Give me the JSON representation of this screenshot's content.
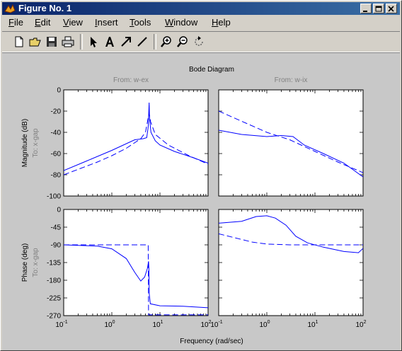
{
  "window": {
    "title": "Figure No. 1"
  },
  "menu": [
    {
      "label": "File",
      "underline": "F"
    },
    {
      "label": "Edit",
      "underline": "E"
    },
    {
      "label": "View",
      "underline": "V"
    },
    {
      "label": "Insert",
      "underline": "I"
    },
    {
      "label": "Tools",
      "underline": "T"
    },
    {
      "label": "Window",
      "underline": "W"
    },
    {
      "label": "Help",
      "underline": "H"
    }
  ],
  "toolbar": {
    "icons": [
      "new-figure-icon",
      "open-file-icon",
      "save-icon",
      "print-icon",
      "select-arrow-icon",
      "insert-text-icon",
      "insert-arrow-icon",
      "insert-line-icon",
      "zoom-in-icon",
      "zoom-out-icon",
      "rotate-3d-icon"
    ]
  },
  "chart_data": {
    "type": "line",
    "title": "Bode Diagram",
    "xlabel": "Frequency (rad/sec)",
    "xscale": "log",
    "xlim": [
      0.1,
      100
    ],
    "xticks": [
      "10^-1",
      "10^0",
      "10^1",
      "10^2"
    ],
    "columns": [
      "From: w-ex",
      "From: w-ix"
    ],
    "row_label": "To: x-gap",
    "magnitude": {
      "ylabel": "Magnitude (dB)",
      "ylim": [
        -100,
        0
      ],
      "yticks": [
        "0",
        "-20",
        "-40",
        "-60",
        "-80",
        "-100"
      ]
    },
    "phase": {
      "ylabel": "Phase (deg)",
      "ylim": [
        -270,
        0
      ],
      "yticks": [
        "0",
        "-45",
        "-90",
        "-135",
        "-180",
        "-225",
        "-270"
      ]
    },
    "panels": {
      "mag_wex": {
        "solid": [
          [
            0.1,
            -76
          ],
          [
            0.3,
            -67
          ],
          [
            1,
            -57
          ],
          [
            3,
            -47
          ],
          [
            4.5,
            -46
          ],
          [
            5.3,
            -45
          ],
          [
            5.7,
            -35
          ],
          [
            5.95,
            -12
          ],
          [
            6.1,
            -28
          ],
          [
            6.5,
            -40
          ],
          [
            8,
            -48
          ],
          [
            10,
            -52
          ],
          [
            20,
            -58
          ],
          [
            50,
            -64
          ],
          [
            100,
            -69
          ]
        ],
        "dashed": [
          [
            0.1,
            -80
          ],
          [
            0.5,
            -68
          ],
          [
            1,
            -62
          ],
          [
            2,
            -55
          ],
          [
            4,
            -46
          ],
          [
            5,
            -40
          ],
          [
            5.6,
            -28
          ],
          [
            5.95,
            -22
          ],
          [
            6.4,
            -30
          ],
          [
            8,
            -42
          ],
          [
            15,
            -52
          ],
          [
            40,
            -62
          ],
          [
            100,
            -70
          ]
        ]
      },
      "mag_wix": {
        "solid": [
          [
            0.1,
            -38
          ],
          [
            0.3,
            -42
          ],
          [
            1,
            -44
          ],
          [
            2,
            -43
          ],
          [
            3.5,
            -44
          ],
          [
            6,
            -52
          ],
          [
            15,
            -60
          ],
          [
            40,
            -69
          ],
          [
            100,
            -82
          ]
        ],
        "dashed": [
          [
            0.1,
            -20
          ],
          [
            1,
            -40
          ],
          [
            3,
            -47
          ],
          [
            10,
            -58
          ],
          [
            30,
            -68
          ],
          [
            100,
            -78
          ]
        ]
      },
      "phase_wex": {
        "solid": [
          [
            0.1,
            -90
          ],
          [
            0.5,
            -93
          ],
          [
            1,
            -100
          ],
          [
            2,
            -125
          ],
          [
            3,
            -160
          ],
          [
            4,
            -182
          ],
          [
            4.8,
            -172
          ],
          [
            5.5,
            -150
          ],
          [
            5.8,
            -132
          ],
          [
            5.9,
            -150
          ],
          [
            6,
            -215
          ],
          [
            6.3,
            -240
          ],
          [
            10,
            -245
          ],
          [
            30,
            -246
          ],
          [
            100,
            -250
          ]
        ],
        "dashed": [
          [
            0.1,
            -90
          ],
          [
            5.7,
            -90
          ],
          [
            5.8,
            -268
          ],
          [
            100,
            -268
          ]
        ]
      },
      "phase_wix": {
        "solid": [
          [
            0.1,
            -35
          ],
          [
            0.3,
            -30
          ],
          [
            0.6,
            -18
          ],
          [
            1,
            -16
          ],
          [
            1.5,
            -22
          ],
          [
            2.5,
            -40
          ],
          [
            4,
            -68
          ],
          [
            7,
            -85
          ],
          [
            15,
            -96
          ],
          [
            40,
            -107
          ],
          [
            80,
            -110
          ],
          [
            100,
            -99
          ]
        ],
        "dashed": [
          [
            0.1,
            -62
          ],
          [
            0.5,
            -83
          ],
          [
            1,
            -88
          ],
          [
            3,
            -90
          ],
          [
            100,
            -90
          ]
        ]
      }
    }
  }
}
